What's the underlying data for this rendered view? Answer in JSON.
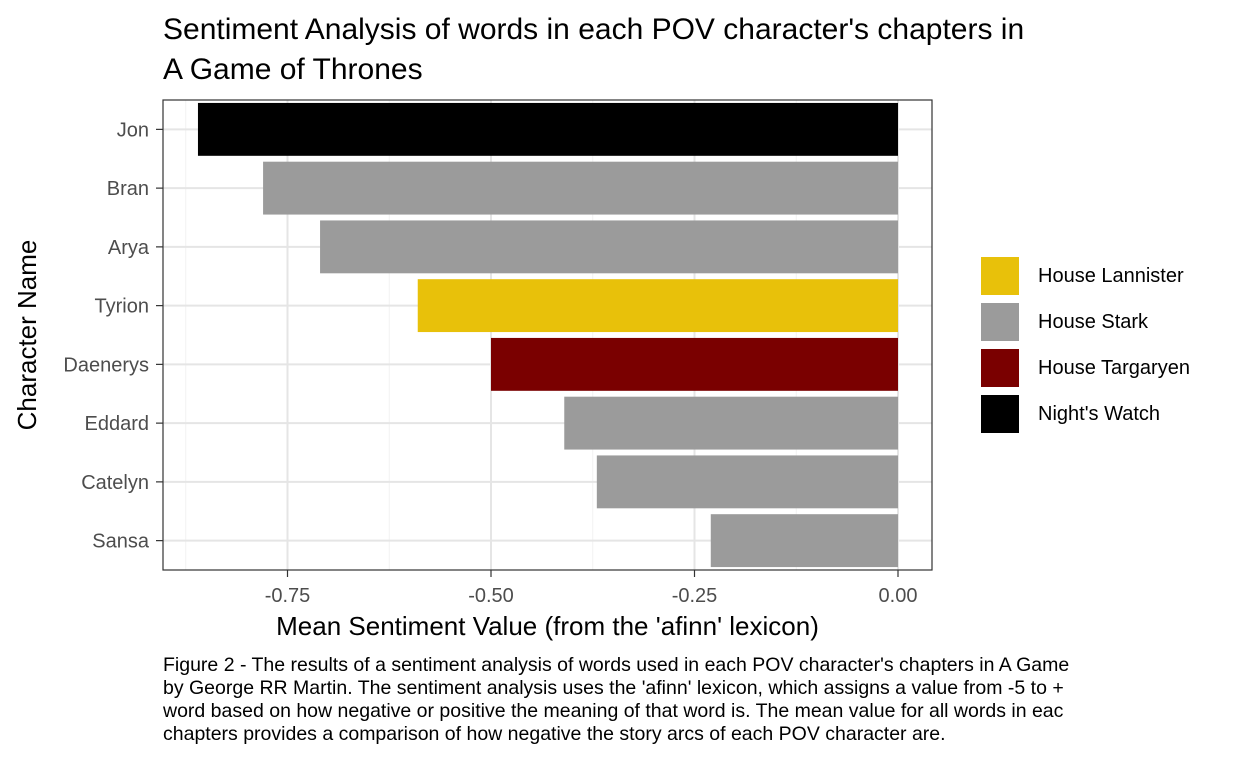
{
  "chart_data": {
    "type": "bar",
    "orientation": "horizontal",
    "title_line1": "Sentiment Analysis of words in each POV character's chapters in",
    "title_line2": "A Game of Thrones",
    "xlabel": "Mean Sentiment Value (from the 'afinn' lexicon)",
    "ylabel": "Character Name",
    "xlim": [
      -0.88,
      0.0
    ],
    "xticks": [
      -0.75,
      -0.5,
      -0.25,
      0.0
    ],
    "xtick_labels": [
      "-0.75",
      "-0.50",
      "-0.25",
      "0.00"
    ],
    "grid": true,
    "legend_position": "right",
    "categories": [
      "Jon",
      "Bran",
      "Arya",
      "Tyrion",
      "Daenerys",
      "Eddard",
      "Catelyn",
      "Sansa"
    ],
    "values": [
      -0.86,
      -0.78,
      -0.71,
      -0.59,
      -0.5,
      -0.41,
      -0.37,
      -0.23
    ],
    "groups": [
      "Night's Watch",
      "House Stark",
      "House Stark",
      "House Lannister",
      "House Targaryen",
      "House Stark",
      "House Stark",
      "House Stark"
    ],
    "legend": [
      {
        "name": "House Lannister",
        "color": "#E8C10A"
      },
      {
        "name": "House Stark",
        "color": "#9B9B9B"
      },
      {
        "name": "House Targaryen",
        "color": "#7A0000"
      },
      {
        "name": "Night's Watch",
        "color": "#000000"
      }
    ]
  },
  "caption": {
    "line1": "Figure 2 - The results of a sentiment analysis of words used in each POV character's chapters in A Game",
    "line2": "by George RR Martin. The sentiment analysis uses the 'afinn' lexicon, which assigns a value from -5 to +",
    "line3": "word based on how negative or positive the meaning of that word is. The mean value for all words in eac",
    "line4": "chapters provides a comparison of how negative the story arcs of each POV character are."
  }
}
